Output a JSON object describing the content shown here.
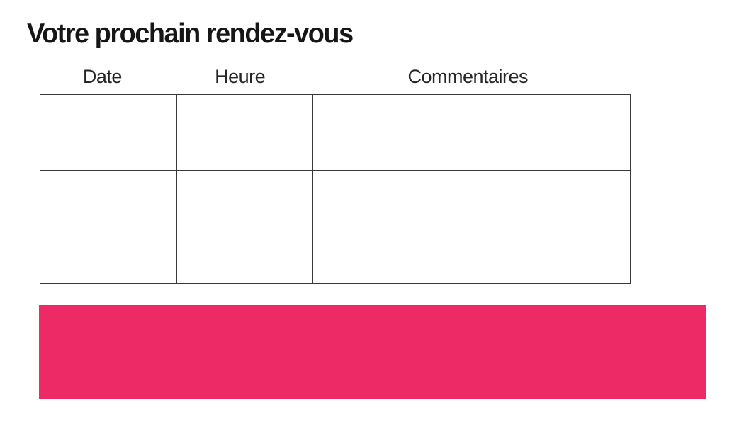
{
  "page": {
    "title": "Votre prochain rendez-vous"
  },
  "table": {
    "columns": [
      {
        "label": "Date"
      },
      {
        "label": "Heure"
      },
      {
        "label": "Commentaires"
      }
    ],
    "row_count": 5,
    "rows": [
      [
        "",
        "",
        ""
      ],
      [
        "",
        "",
        ""
      ],
      [
        "",
        "",
        ""
      ],
      [
        "",
        "",
        ""
      ],
      [
        "",
        "",
        ""
      ]
    ]
  },
  "highlight_banner": {
    "text": "",
    "color": "#ED2A66"
  },
  "colors": {
    "accent_pink": "#ED2A66",
    "table_border": "#3A3A3A",
    "title_text": "#161616",
    "header_text": "#262626",
    "background": "#FFFFFF"
  }
}
